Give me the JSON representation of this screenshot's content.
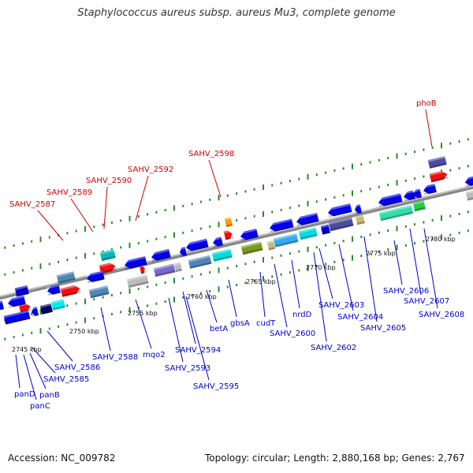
{
  "title": "Staphylococcus aureus subsp. aureus Mu3, complete genome",
  "footer": {
    "accession": "Accession: NC_009782",
    "summary": "Topology: circular; Length: 2,880,168 bp; Genes: 2,767"
  },
  "colors": {
    "forward_label": "#cc0000",
    "reverse_label": "#0000cc",
    "backbone": "#888888",
    "tick": "#2a8a2a"
  },
  "scale_labels": [
    "2745 kbp",
    "2750 kbp",
    "2755 kbp",
    "2760 kbp",
    "2765 kbp",
    "2770 kbp",
    "2775 kbp",
    "2780 kbp"
  ],
  "forward_labels": [
    "SAHV_2587",
    "SAHV_2589",
    "SAHV_2590",
    "SAHV_2592",
    "SAHV_2598",
    "phoB"
  ],
  "reverse_labels": [
    "panD",
    "panC",
    "panB",
    "SAHV_2585",
    "SAHV_2586",
    "SAHV_2588",
    "mqo2",
    "SAHV_2593",
    "SAHV_2594",
    "SAHV_2595",
    "betA",
    "gbsA",
    "cudT",
    "SAHV_2600",
    "nrdD",
    "SAHV_2602",
    "SAHV_2603",
    "SAHV_2604",
    "SAHV_2605",
    "SAHV_2606",
    "SAHV_2607",
    "SAHV_2608"
  ]
}
